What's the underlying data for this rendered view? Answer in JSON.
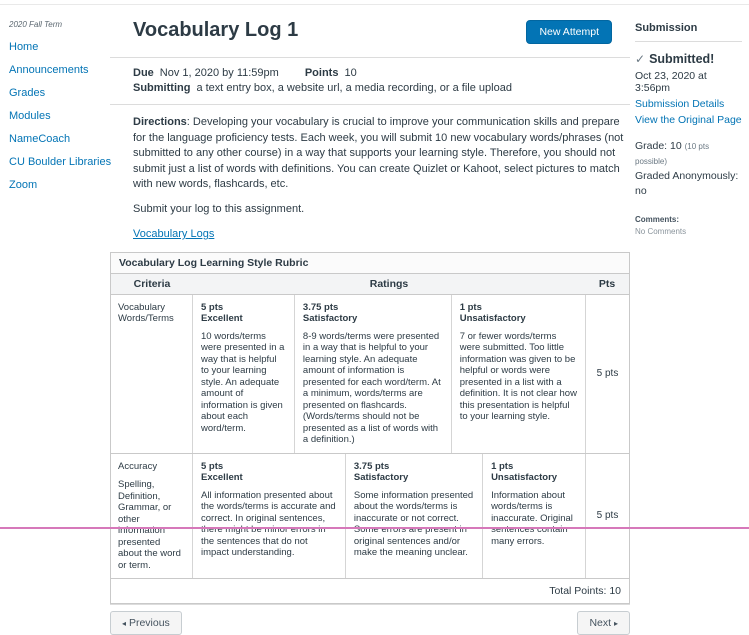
{
  "colors": {
    "accent_blue": "#0374B5",
    "text_dark": "#2D3B45",
    "highlight_pink": "#D678BA",
    "table_border": "#C9C9C9"
  },
  "course_nav": {
    "term": "2020 Fall Term",
    "items": [
      "Home",
      "Announcements",
      "Grades",
      "Modules",
      "NameCoach",
      "CU Boulder Libraries",
      "Zoom"
    ]
  },
  "header": {
    "title": "Vocabulary Log 1",
    "new_attempt_label": "New Attempt"
  },
  "meta": {
    "due_label": "Due",
    "due_value": "Nov 1, 2020 by 11:59pm",
    "points_label": "Points",
    "points_value": "10",
    "submitting_label": "Submitting",
    "submitting_value": "a text entry box, a website url, a media recording, or a file upload"
  },
  "description": {
    "directions_label": "Directions",
    "directions_body": ": Developing your vocabulary is crucial to improve your communication skills and prepare for the language proficiency tests.  Each week, you will submit 10 new vocabulary words/phrases (not submitted to any other course) in a way that supports your learning style.  Therefore, you should not submit just a list of words with definitions.  You can create Quizlet or Kahoot, select pictures to match with new words, flashcards, etc.",
    "submit_line": "Submit your log to this assignment.",
    "link_label": "Vocabulary Logs"
  },
  "rubric": {
    "title": "Vocabulary Log Learning Style Rubric",
    "headers": {
      "criteria": "Criteria",
      "ratings": "Ratings",
      "pts": "Pts"
    },
    "rows": [
      {
        "criteria_title": "Vocabulary Words/Terms",
        "criteria_sub": "",
        "ratings": [
          {
            "pts": "5 pts",
            "label": "Excellent",
            "desc": "10 words/terms were presented in a way that is helpful to your learning style. An adequate amount of information is given about each word/term."
          },
          {
            "pts": "3.75 pts",
            "label": "Satisfactory",
            "desc": "8-9 words/terms were presented in a way that is helpful to your learning style. An adequate amount of information is presented for each word/term. At a minimum, words/terms are presented on flashcards. (Words/terms should not be presented as a list of words with a definition.)"
          },
          {
            "pts": "1 pts",
            "label": "Unsatisfactory",
            "desc": "7 or fewer words/terms were submitted. Too little information was given to be helpful or words were presented in a list with a definition. It is not clear how this presentation is helpful to your learning style."
          }
        ],
        "pts": "5 pts"
      },
      {
        "criteria_title": "Accuracy",
        "criteria_sub": "Spelling, Definition, Grammar, or other information presented about the word or term.",
        "ratings": [
          {
            "pts": "5 pts",
            "label": "Excellent",
            "desc": "All information presented about the words/terms is accurate and correct. In original sentences, there might be minor errors in the sentences that do not impact understanding."
          },
          {
            "pts": "3.75 pts",
            "label": "Satisfactory",
            "desc": "Some information presented about the words/terms is inaccurate or not correct. Some errors are present in original sentences and/or make the meaning unclear."
          },
          {
            "pts": "1 pts",
            "label": "Unsatisfactory",
            "desc": "Information about words/terms is inaccurate. Original sentences contain many errors."
          }
        ],
        "pts": "5 pts"
      }
    ],
    "total_label": "Total Points: 10"
  },
  "footer_nav": {
    "previous_label": "Previous",
    "next_label": "Next"
  },
  "icons": {
    "check": "✓",
    "prev_arrow": "◂",
    "next_arrow": "▸"
  },
  "submission_panel": {
    "title": "Submission",
    "status": "Submitted!",
    "date": "Oct 23, 2020 at 3:56pm",
    "link_details": "Submission Details",
    "link_original": "View the Original Page",
    "grade_line": "Grade: 10",
    "grade_note": "(10 pts possible)",
    "graded_anonymously": "Graded Anonymously: no",
    "comments_label": "Comments:",
    "comments_value": "No Comments"
  }
}
